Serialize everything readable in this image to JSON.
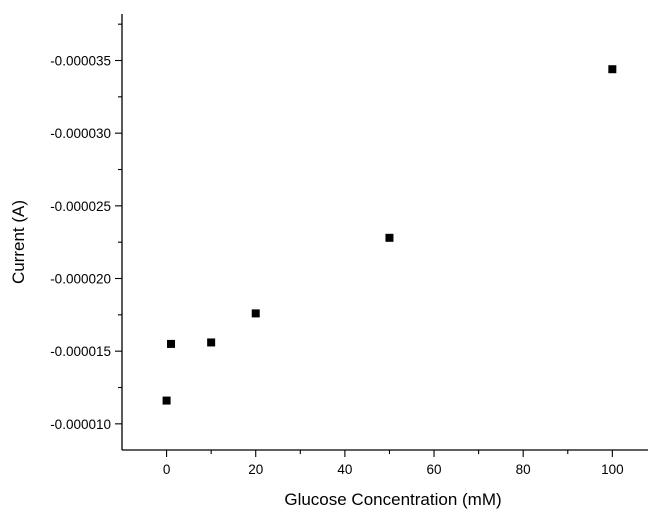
{
  "chart_data": {
    "type": "scatter",
    "title": "",
    "xlabel": "Glucose Concentration (mM)",
    "ylabel": "Current (A)",
    "xlim": [
      -10,
      108
    ],
    "ylim": [
      -8.2e-06,
      -3.82e-05
    ],
    "x_ticks": [
      0,
      20,
      40,
      60,
      80,
      100
    ],
    "x_tick_labels": [
      "0",
      "20",
      "40",
      "60",
      "80",
      "100"
    ],
    "y_ticks": [
      -1e-05,
      -1.5e-05,
      -2e-05,
      -2.5e-05,
      -3e-05,
      -3.5e-05
    ],
    "y_tick_labels": [
      "-0.000010",
      "-0.000015",
      "-0.000020",
      "-0.000025",
      "-0.000030",
      "-0.000035"
    ],
    "grid": false,
    "legend": "none",
    "marker": "square",
    "marker_color": "#000000",
    "series": [
      {
        "points": [
          {
            "x": 0,
            "y": -1.16e-05
          },
          {
            "x": 1,
            "y": -1.55e-05
          },
          {
            "x": 10,
            "y": -1.56e-05
          },
          {
            "x": 20,
            "y": -1.76e-05
          },
          {
            "x": 50,
            "y": -2.28e-05
          },
          {
            "x": 100,
            "y": -3.44e-05
          }
        ]
      }
    ]
  }
}
